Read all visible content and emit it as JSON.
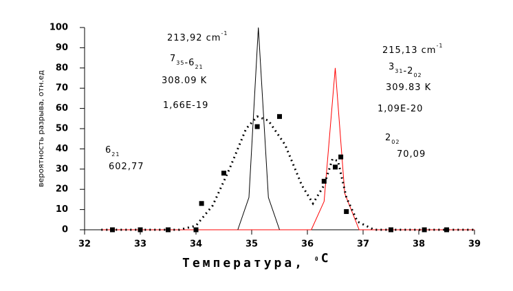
{
  "chart_data": {
    "type": "line",
    "x_label": {
      "parts": [
        {
          "text": "Температура, "
        },
        {
          "text": "0",
          "pos": "sup"
        },
        {
          "text": "C"
        }
      ]
    },
    "y_label": "вероятность разрыва, отн.ед",
    "xlim": [
      32,
      39
    ],
    "ylim": [
      0,
      100
    ],
    "xticks": [
      32,
      33,
      34,
      35,
      36,
      37,
      38,
      39
    ],
    "yticks": [
      0,
      10,
      20,
      30,
      40,
      50,
      60,
      70,
      80,
      90,
      100
    ],
    "series": [
      {
        "style": "solid",
        "color": "#ff0000",
        "x": [
          32.3,
          36.07,
          36.3,
          36.5,
          36.67,
          36.93,
          39
        ],
        "values": [
          0,
          0,
          14,
          80,
          18,
          0,
          0
        ]
      },
      {
        "style": "solid",
        "color": "#000000",
        "x": [
          34.75,
          34.95,
          35.12,
          35.3,
          35.5
        ],
        "values": [
          0,
          16,
          100,
          16,
          0
        ]
      },
      {
        "style": "dotted",
        "color": "#000000",
        "x": [
          32.3,
          33.7,
          34.0,
          34.3,
          34.6,
          34.9,
          35.1,
          35.3,
          35.6,
          35.9,
          36.1,
          36.3,
          36.45,
          36.55,
          36.7,
          36.9,
          37.2,
          39
        ],
        "values": [
          0,
          0,
          2,
          12,
          30,
          50,
          56,
          54,
          42,
          22,
          13,
          22,
          35,
          34,
          16,
          4,
          0,
          0
        ]
      },
      {
        "style": "markers",
        "color": "#000000",
        "x": [
          32.5,
          33,
          33.5,
          34,
          34.1,
          34.5,
          35.1,
          35.5,
          36.3,
          36.5,
          36.6,
          36.7,
          37.5,
          38.1,
          38.5
        ],
        "values": [
          0,
          0,
          0,
          0,
          13,
          28,
          51,
          56,
          24,
          31,
          36,
          9,
          0,
          0,
          0
        ]
      }
    ],
    "annotations": [
      {
        "parts": [
          {
            "text": "213,92 cm"
          },
          {
            "text": "-1",
            "pos": "sup"
          }
        ]
      },
      {
        "parts": [
          {
            "text": "7"
          },
          {
            "text": "35",
            "pos": "sub"
          },
          {
            "text": "-6"
          },
          {
            "text": "21",
            "pos": "sub"
          }
        ]
      },
      {
        "parts": [
          {
            "text": "308.09 K"
          }
        ]
      },
      {
        "parts": [
          {
            "text": "1,66E-19"
          }
        ]
      },
      {
        "parts": [
          {
            "text": "6"
          },
          {
            "text": "21",
            "pos": "sub"
          }
        ]
      },
      {
        "parts": [
          {
            "text": "602,77"
          }
        ]
      },
      {
        "parts": [
          {
            "text": "215,13 cm"
          },
          {
            "text": "-1",
            "pos": "sup"
          }
        ]
      },
      {
        "parts": [
          {
            "text": "3"
          },
          {
            "text": "31",
            "pos": "sub"
          },
          {
            "text": "-2"
          },
          {
            "text": "02",
            "pos": "sub"
          }
        ]
      },
      {
        "parts": [
          {
            "text": "309.83 K"
          }
        ]
      },
      {
        "parts": [
          {
            "text": "1,09E-20"
          }
        ]
      },
      {
        "parts": [
          {
            "text": "2"
          },
          {
            "text": "02",
            "pos": "sub"
          }
        ]
      },
      {
        "parts": [
          {
            "text": "70,09"
          }
        ]
      }
    ]
  }
}
